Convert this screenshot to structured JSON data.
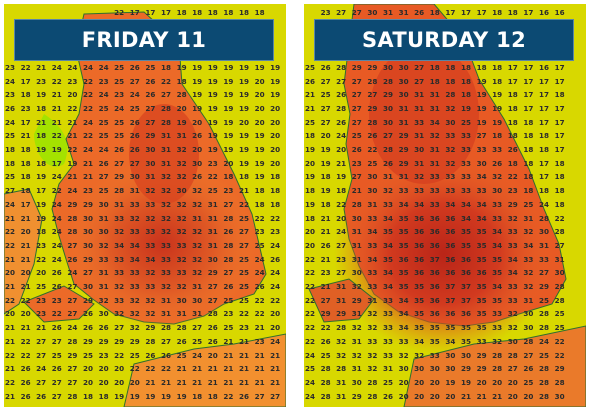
{
  "colors": {
    "land_hot": "#d23a1f",
    "land_warm": "#ec6a28",
    "land_mild": "#f5a035",
    "sea": "#d8d800",
    "cool": "#9ee000",
    "coast": "#2e6f2e",
    "banner_bg": "#0c4a73",
    "banner_text": "#ffffff"
  },
  "panels": [
    {
      "title": "FRIDAY 11",
      "rows": [
        [
          "",
          "",
          "",
          "",
          "",
          "",
          "",
          "22",
          "17",
          "17",
          "17",
          "18",
          "18",
          "18",
          "18",
          "18",
          "18",
          ""
        ],
        [
          "",
          "",
          "",
          "",
          "",
          "",
          "",
          "",
          "",
          "",
          "",
          "",
          "",
          "",
          "",
          "",
          "",
          ""
        ],
        [
          "",
          "",
          "",
          "",
          "",
          "",
          "",
          "",
          "",
          "",
          "",
          "",
          "",
          "",
          "",
          "",
          "",
          ""
        ],
        [
          "",
          "",
          "",
          "",
          "",
          "",
          "",
          "",
          "",
          "",
          "",
          "",
          "",
          "",
          "",
          "",
          "",
          ""
        ],
        [
          "23",
          "22",
          "21",
          "24",
          "24",
          "24",
          "24",
          "25",
          "26",
          "25",
          "18",
          "19",
          "19",
          "19",
          "19",
          "19",
          "19",
          "19"
        ],
        [
          "24",
          "17",
          "23",
          "22",
          "23",
          "22",
          "23",
          "25",
          "27",
          "26",
          "22",
          "18",
          "19",
          "19",
          "19",
          "19",
          "20",
          "19"
        ],
        [
          "23",
          "18",
          "19",
          "21",
          "20",
          "22",
          "24",
          "23",
          "24",
          "26",
          "27",
          "28",
          "19",
          "19",
          "19",
          "19",
          "20",
          "19"
        ],
        [
          "26",
          "23",
          "18",
          "21",
          "22",
          "22",
          "25",
          "24",
          "25",
          "27",
          "28",
          "20",
          "19",
          "19",
          "19",
          "19",
          "20",
          "20"
        ],
        [
          "24",
          "17",
          "21",
          "21",
          "21",
          "24",
          "25",
          "25",
          "26",
          "27",
          "28",
          "19",
          "20",
          "19",
          "19",
          "20",
          "20",
          "20"
        ],
        [
          "25",
          "21",
          "18",
          "22",
          "21",
          "22",
          "25",
          "25",
          "26",
          "29",
          "31",
          "31",
          "26",
          "19",
          "19",
          "19",
          "19",
          "20"
        ],
        [
          "18",
          "18",
          "19",
          "19",
          "22",
          "24",
          "24",
          "26",
          "26",
          "30",
          "31",
          "32",
          "20",
          "19",
          "19",
          "19",
          "19",
          "20"
        ],
        [
          "18",
          "18",
          "18",
          "17",
          "19",
          "21",
          "26",
          "27",
          "27",
          "30",
          "31",
          "32",
          "30",
          "23",
          "20",
          "19",
          "19",
          "20"
        ],
        [
          "25",
          "18",
          "19",
          "24",
          "21",
          "21",
          "27",
          "29",
          "30",
          "31",
          "32",
          "32",
          "26",
          "22",
          "18",
          "18",
          "19",
          "18"
        ],
        [
          "27",
          "18",
          "17",
          "22",
          "24",
          "23",
          "25",
          "28",
          "31",
          "32",
          "32",
          "30",
          "32",
          "25",
          "23",
          "21",
          "18",
          "18"
        ],
        [
          "24",
          "17",
          "19",
          "24",
          "29",
          "29",
          "30",
          "31",
          "33",
          "33",
          "32",
          "32",
          "32",
          "31",
          "27",
          "22",
          "18",
          "18"
        ],
        [
          "21",
          "21",
          "19",
          "24",
          "28",
          "30",
          "31",
          "33",
          "32",
          "32",
          "32",
          "32",
          "31",
          "31",
          "28",
          "25",
          "22",
          "22"
        ],
        [
          "22",
          "20",
          "18",
          "24",
          "28",
          "30",
          "30",
          "32",
          "33",
          "33",
          "32",
          "32",
          "32",
          "31",
          "26",
          "27",
          "23",
          "23"
        ],
        [
          "22",
          "21",
          "23",
          "24",
          "27",
          "30",
          "32",
          "34",
          "34",
          "33",
          "33",
          "33",
          "32",
          "31",
          "28",
          "27",
          "25",
          "24"
        ],
        [
          "21",
          "21",
          "22",
          "24",
          "26",
          "29",
          "33",
          "33",
          "34",
          "34",
          "33",
          "32",
          "32",
          "30",
          "28",
          "25",
          "24",
          "26"
        ],
        [
          "20",
          "20",
          "20",
          "26",
          "24",
          "27",
          "31",
          "33",
          "33",
          "32",
          "33",
          "33",
          "32",
          "29",
          "27",
          "25",
          "24",
          "24"
        ],
        [
          "21",
          "21",
          "25",
          "26",
          "27",
          "30",
          "31",
          "32",
          "33",
          "33",
          "32",
          "32",
          "31",
          "27",
          "26",
          "25",
          "26",
          "24"
        ],
        [
          "22",
          "22",
          "23",
          "23",
          "27",
          "29",
          "32",
          "33",
          "32",
          "32",
          "31",
          "30",
          "30",
          "27",
          "25",
          "25",
          "22",
          "22"
        ],
        [
          "20",
          "20",
          "23",
          "22",
          "27",
          "26",
          "30",
          "32",
          "32",
          "32",
          "31",
          "31",
          "31",
          "28",
          "23",
          "22",
          "22",
          "20"
        ],
        [
          "21",
          "21",
          "21",
          "26",
          "24",
          "26",
          "26",
          "27",
          "32",
          "29",
          "28",
          "28",
          "27",
          "26",
          "25",
          "23",
          "21",
          "20"
        ],
        [
          "21",
          "22",
          "27",
          "27",
          "28",
          "29",
          "29",
          "29",
          "29",
          "28",
          "27",
          "26",
          "25",
          "26",
          "21",
          "21",
          "23",
          "24"
        ],
        [
          "22",
          "22",
          "27",
          "25",
          "29",
          "25",
          "23",
          "22",
          "25",
          "26",
          "26",
          "25",
          "24",
          "20",
          "21",
          "21",
          "21",
          "21"
        ],
        [
          "21",
          "26",
          "24",
          "26",
          "27",
          "20",
          "20",
          "20",
          "22",
          "22",
          "22",
          "21",
          "21",
          "21",
          "21",
          "21",
          "21",
          "21"
        ],
        [
          "22",
          "26",
          "27",
          "27",
          "27",
          "20",
          "20",
          "20",
          "20",
          "21",
          "21",
          "21",
          "21",
          "21",
          "21",
          "21",
          "21",
          "21"
        ],
        [
          "21",
          "26",
          "26",
          "27",
          "28",
          "18",
          "18",
          "19",
          "19",
          "19",
          "19",
          "19",
          "18",
          "18",
          "22",
          "26",
          "27",
          "27"
        ]
      ]
    },
    {
      "title": "SATURDAY 12",
      "rows": [
        [
          "",
          "23",
          "27",
          "27",
          "30",
          "31",
          "31",
          "26",
          "18",
          "17",
          "17",
          "17",
          "18",
          "18",
          "17",
          "16",
          "16",
          ""
        ],
        [
          "",
          "",
          "",
          "",
          "",
          "",
          "",
          "",
          "",
          "",
          "",
          "",
          "",
          "",
          "",
          "",
          "",
          ""
        ],
        [
          "",
          "",
          "",
          "",
          "",
          "",
          "",
          "",
          "",
          "",
          "",
          "",
          "",
          "",
          "",
          "",
          "",
          ""
        ],
        [
          "",
          "",
          "",
          "",
          "",
          "",
          "",
          "",
          "",
          "",
          "",
          "",
          "",
          "",
          "",
          "",
          "",
          ""
        ],
        [
          "25",
          "26",
          "28",
          "29",
          "29",
          "30",
          "30",
          "27",
          "18",
          "18",
          "18",
          "18",
          "18",
          "17",
          "17",
          "16",
          "17",
          ""
        ],
        [
          "26",
          "27",
          "27",
          "27",
          "28",
          "28",
          "30",
          "27",
          "18",
          "18",
          "18",
          "19",
          "18",
          "17",
          "17",
          "17",
          "17",
          ""
        ],
        [
          "21",
          "25",
          "26",
          "27",
          "27",
          "29",
          "30",
          "31",
          "31",
          "28",
          "18",
          "19",
          "19",
          "18",
          "17",
          "17",
          "18",
          ""
        ],
        [
          "21",
          "27",
          "28",
          "27",
          "29",
          "30",
          "31",
          "31",
          "31",
          "32",
          "19",
          "19",
          "19",
          "18",
          "17",
          "17",
          "17",
          ""
        ],
        [
          "25",
          "27",
          "26",
          "27",
          "28",
          "30",
          "31",
          "33",
          "34",
          "30",
          "25",
          "19",
          "19",
          "18",
          "18",
          "17",
          "17",
          ""
        ],
        [
          "18",
          "20",
          "24",
          "25",
          "26",
          "27",
          "29",
          "31",
          "32",
          "33",
          "33",
          "27",
          "18",
          "18",
          "18",
          "18",
          "17",
          ""
        ],
        [
          "19",
          "19",
          "20",
          "26",
          "22",
          "28",
          "29",
          "30",
          "31",
          "32",
          "33",
          "33",
          "33",
          "26",
          "18",
          "18",
          "17",
          ""
        ],
        [
          "20",
          "19",
          "21",
          "23",
          "25",
          "26",
          "29",
          "31",
          "31",
          "32",
          "33",
          "30",
          "26",
          "18",
          "18",
          "17",
          "18",
          ""
        ],
        [
          "19",
          "18",
          "19",
          "27",
          "30",
          "31",
          "31",
          "32",
          "33",
          "33",
          "33",
          "34",
          "32",
          "22",
          "18",
          "17",
          "18",
          ""
        ],
        [
          "18",
          "19",
          "18",
          "21",
          "30",
          "32",
          "33",
          "33",
          "33",
          "33",
          "33",
          "33",
          "30",
          "23",
          "18",
          "18",
          "18",
          ""
        ],
        [
          "19",
          "18",
          "22",
          "28",
          "31",
          "33",
          "34",
          "34",
          "33",
          "34",
          "34",
          "34",
          "33",
          "29",
          "25",
          "24",
          "18",
          ""
        ],
        [
          "18",
          "21",
          "20",
          "30",
          "33",
          "34",
          "35",
          "36",
          "36",
          "36",
          "34",
          "34",
          "33",
          "32",
          "31",
          "28",
          "22",
          ""
        ],
        [
          "20",
          "21",
          "24",
          "31",
          "34",
          "35",
          "35",
          "36",
          "36",
          "36",
          "35",
          "35",
          "34",
          "33",
          "32",
          "30",
          "28",
          ""
        ],
        [
          "20",
          "26",
          "27",
          "31",
          "33",
          "34",
          "35",
          "36",
          "36",
          "36",
          "35",
          "35",
          "34",
          "33",
          "34",
          "31",
          "27",
          ""
        ],
        [
          "22",
          "21",
          "23",
          "31",
          "34",
          "35",
          "36",
          "36",
          "37",
          "36",
          "36",
          "35",
          "35",
          "34",
          "33",
          "33",
          "31",
          ""
        ],
        [
          "22",
          "23",
          "27",
          "30",
          "33",
          "34",
          "35",
          "36",
          "36",
          "36",
          "36",
          "36",
          "35",
          "34",
          "32",
          "27",
          "30",
          ""
        ],
        [
          "22",
          "21",
          "31",
          "32",
          "33",
          "34",
          "35",
          "35",
          "36",
          "37",
          "37",
          "35",
          "34",
          "33",
          "32",
          "29",
          "28",
          ""
        ],
        [
          "22",
          "27",
          "31",
          "29",
          "31",
          "33",
          "34",
          "35",
          "36",
          "37",
          "37",
          "35",
          "35",
          "33",
          "31",
          "25",
          "28",
          ""
        ],
        [
          "22",
          "29",
          "29",
          "31",
          "32",
          "33",
          "34",
          "35",
          "36",
          "36",
          "36",
          "35",
          "33",
          "32",
          "30",
          "28",
          "25",
          ""
        ],
        [
          "22",
          "22",
          "28",
          "32",
          "32",
          "33",
          "34",
          "35",
          "35",
          "35",
          "35",
          "35",
          "33",
          "32",
          "30",
          "28",
          "25",
          ""
        ],
        [
          "22",
          "26",
          "32",
          "31",
          "33",
          "33",
          "33",
          "34",
          "35",
          "34",
          "35",
          "33",
          "32",
          "30",
          "28",
          "24",
          "22",
          ""
        ],
        [
          "24",
          "25",
          "32",
          "32",
          "32",
          "33",
          "32",
          "32",
          "33",
          "30",
          "30",
          "29",
          "28",
          "28",
          "27",
          "25",
          "22",
          ""
        ],
        [
          "25",
          "28",
          "28",
          "31",
          "32",
          "31",
          "30",
          "30",
          "30",
          "30",
          "29",
          "29",
          "28",
          "27",
          "26",
          "28",
          "29",
          ""
        ],
        [
          "24",
          "28",
          "31",
          "30",
          "28",
          "25",
          "20",
          "20",
          "20",
          "19",
          "19",
          "20",
          "20",
          "20",
          "25",
          "28",
          "28",
          ""
        ],
        [
          "24",
          "28",
          "31",
          "29",
          "28",
          "26",
          "20",
          "20",
          "20",
          "20",
          "21",
          "21",
          "21",
          "20",
          "20",
          "28",
          "30",
          ""
        ]
      ]
    }
  ]
}
